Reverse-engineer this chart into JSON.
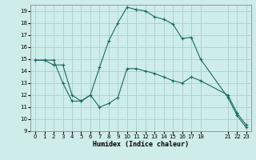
{
  "xlabel": "Humidex (Indice chaleur)",
  "bg_color": "#ceecea",
  "grid_color": "#aad4d0",
  "line_color": "#1a6b60",
  "line1_x": [
    0,
    1,
    2,
    3,
    4,
    5,
    6,
    7,
    8,
    9,
    10,
    11,
    12,
    13,
    14,
    15,
    16,
    17,
    18,
    21,
    22,
    23
  ],
  "line1_y": [
    14.9,
    14.9,
    14.9,
    13.0,
    11.5,
    11.5,
    12.0,
    11.0,
    11.3,
    11.8,
    14.2,
    14.2,
    14.0,
    13.8,
    13.5,
    13.2,
    13.0,
    13.5,
    13.2,
    12.0,
    10.5,
    9.5
  ],
  "line2_x": [
    0,
    1,
    2,
    3,
    4,
    5,
    6,
    7,
    8,
    9,
    10,
    11,
    12,
    13,
    14,
    15,
    16,
    17,
    18,
    21,
    22,
    23
  ],
  "line2_y": [
    14.9,
    14.9,
    14.5,
    14.5,
    12.0,
    11.5,
    12.0,
    14.3,
    16.5,
    18.0,
    19.3,
    19.1,
    19.0,
    18.5,
    18.3,
    17.9,
    16.7,
    16.8,
    15.0,
    11.8,
    10.3,
    9.3
  ],
  "xlim": [
    -0.5,
    23.5
  ],
  "ylim": [
    9,
    19.5
  ],
  "xticks": [
    0,
    1,
    2,
    3,
    4,
    5,
    6,
    7,
    8,
    9,
    10,
    11,
    12,
    13,
    14,
    15,
    16,
    17,
    18,
    21,
    22,
    23
  ],
  "yticks": [
    9,
    10,
    11,
    12,
    13,
    14,
    15,
    16,
    17,
    18,
    19
  ],
  "marker": "+"
}
